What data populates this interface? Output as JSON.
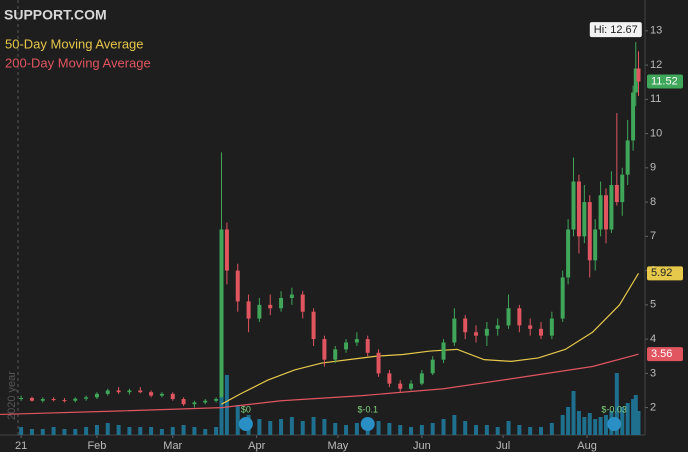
{
  "chart_data": {
    "type": "candlestick",
    "title": "SUPPORT.COM",
    "side_label": "2020 year",
    "high_label": "Hi: 12.67",
    "x": [
      4,
      8,
      12,
      16,
      20,
      24,
      28,
      32,
      36,
      40,
      44,
      48,
      52,
      56,
      60,
      64,
      68,
      72,
      76,
      78,
      80,
      84,
      88,
      92,
      96,
      100,
      104,
      108,
      112,
      116,
      120,
      124,
      128,
      132,
      136,
      140,
      144,
      148,
      152,
      156,
      160,
      164,
      168,
      172,
      176,
      180,
      184,
      188,
      192,
      196,
      200,
      204,
      206,
      208,
      210,
      212,
      214,
      216,
      218,
      220,
      222,
      224,
      226,
      228,
      230,
      231,
      232
    ],
    "open": [
      2.25,
      2.28,
      2.2,
      2.25,
      2.22,
      2.2,
      2.26,
      2.3,
      2.4,
      2.5,
      2.45,
      2.5,
      2.45,
      2.35,
      2.4,
      2.25,
      2.1,
      2.15,
      2.2,
      2.3,
      7.2,
      6.0,
      5.1,
      4.6,
      5.0,
      4.9,
      5.2,
      5.3,
      4.8,
      4.0,
      3.4,
      3.7,
      3.9,
      4.0,
      3.6,
      3.0,
      2.7,
      2.55,
      2.7,
      3.0,
      3.4,
      3.9,
      4.6,
      4.2,
      4.1,
      4.3,
      4.4,
      4.9,
      4.4,
      4.3,
      4.1,
      4.6,
      5.8,
      7.2,
      8.6,
      7.0,
      8.0,
      6.3,
      7.2,
      8.2,
      7.2,
      8.5,
      8.0,
      8.8,
      9.8,
      11.2,
      11.9
    ],
    "high": [
      2.35,
      2.32,
      2.3,
      2.3,
      2.28,
      2.3,
      2.35,
      2.45,
      2.55,
      2.6,
      2.55,
      2.6,
      2.5,
      2.45,
      2.45,
      2.3,
      2.2,
      2.25,
      2.3,
      9.45,
      7.4,
      6.2,
      5.3,
      5.2,
      5.3,
      5.4,
      5.5,
      5.4,
      4.9,
      4.1,
      3.8,
      4.0,
      4.2,
      4.1,
      3.7,
      3.1,
      2.8,
      2.8,
      3.1,
      3.5,
      4.0,
      4.9,
      4.7,
      4.4,
      4.5,
      4.6,
      5.3,
      5.0,
      4.6,
      4.5,
      4.8,
      6.0,
      7.5,
      9.3,
      8.8,
      8.5,
      8.2,
      7.5,
      8.6,
      8.4,
      8.9,
      10.6,
      9.0,
      10.4,
      11.4,
      12.67,
      12.4
    ],
    "low": [
      2.2,
      2.18,
      2.15,
      2.18,
      2.15,
      2.15,
      2.2,
      2.25,
      2.35,
      2.4,
      2.38,
      2.42,
      2.3,
      2.3,
      2.2,
      2.05,
      2.0,
      2.1,
      2.15,
      2.3,
      5.6,
      4.8,
      4.2,
      4.5,
      4.7,
      4.8,
      5.0,
      4.6,
      3.8,
      3.2,
      3.3,
      3.6,
      3.8,
      3.5,
      2.9,
      2.6,
      2.45,
      2.5,
      2.65,
      2.95,
      3.3,
      3.8,
      4.0,
      3.9,
      3.8,
      4.1,
      4.3,
      4.2,
      4.1,
      4.0,
      4.0,
      4.5,
      5.6,
      7.0,
      6.5,
      6.8,
      5.8,
      6.0,
      7.0,
      6.8,
      7.1,
      7.9,
      7.6,
      8.5,
      9.5,
      10.8,
      11.1
    ],
    "close": [
      2.28,
      2.2,
      2.25,
      2.22,
      2.2,
      2.26,
      2.3,
      2.4,
      2.5,
      2.45,
      2.5,
      2.45,
      2.35,
      2.4,
      2.25,
      2.1,
      2.15,
      2.2,
      2.25,
      7.2,
      6.0,
      5.1,
      4.6,
      5.0,
      4.9,
      5.2,
      5.3,
      4.8,
      4.0,
      3.4,
      3.7,
      3.9,
      4.0,
      3.6,
      3.0,
      2.7,
      2.55,
      2.7,
      3.0,
      3.4,
      3.9,
      4.6,
      4.2,
      4.1,
      4.3,
      4.4,
      4.9,
      4.4,
      4.3,
      4.1,
      4.6,
      5.8,
      7.2,
      8.6,
      7.0,
      8.0,
      6.3,
      7.2,
      8.2,
      7.2,
      8.5,
      8.0,
      8.8,
      9.8,
      11.2,
      11.9,
      11.52
    ],
    "volume": [
      4,
      3,
      3,
      4,
      3,
      3,
      4,
      5,
      6,
      5,
      4,
      4,
      4,
      3,
      4,
      5,
      4,
      3,
      4,
      100,
      30,
      15,
      10,
      8,
      7,
      8,
      9,
      7,
      9,
      8,
      6,
      5,
      6,
      5,
      7,
      6,
      5,
      4,
      5,
      6,
      8,
      10,
      7,
      5,
      5,
      4,
      7,
      5,
      4,
      4,
      6,
      10,
      14,
      22,
      12,
      9,
      11,
      8,
      9,
      10,
      12,
      31,
      14,
      16,
      18,
      20,
      12
    ],
    "vlim": [
      0,
      100
    ],
    "xlim": [
      -3.8,
      234.4
    ],
    "xticks": [
      {
        "value": 4,
        "label": "21"
      },
      {
        "value": 32,
        "label": "Feb"
      },
      {
        "value": 60,
        "label": "Mar"
      },
      {
        "value": 91,
        "label": "Apr"
      },
      {
        "value": 121,
        "label": "May"
      },
      {
        "value": 152,
        "label": "Jun"
      },
      {
        "value": 182,
        "label": "Jul"
      },
      {
        "value": 213,
        "label": "Aug"
      }
    ],
    "ylim": [
      1.2,
      13.9
    ],
    "yticks": [
      2,
      3,
      4,
      5,
      6,
      7,
      8,
      9,
      10,
      11,
      12,
      13
    ],
    "up_color": "#3fa65a",
    "down_color": "#e05560",
    "volume_color": "#1f6f8f",
    "series": [
      {
        "name": "50-Day Moving Average",
        "color": "#e6c84b",
        "x": [
          78,
          85,
          95,
          105,
          115,
          125,
          135,
          145,
          155,
          165,
          175,
          185,
          195,
          205,
          215,
          225,
          232
        ],
        "values": [
          2.1,
          2.4,
          2.8,
          3.1,
          3.3,
          3.4,
          3.5,
          3.55,
          3.65,
          3.7,
          3.4,
          3.35,
          3.45,
          3.7,
          4.2,
          5.0,
          5.92
        ]
      },
      {
        "name": "200-Day Moving Average",
        "color": "#e05560",
        "x": [
          -3.8,
          40,
          78,
          100,
          130,
          160,
          190,
          215,
          232
        ],
        "values": [
          1.8,
          1.9,
          2.0,
          2.2,
          2.35,
          2.55,
          2.9,
          3.2,
          3.56
        ]
      }
    ],
    "earnings": [
      {
        "x": 87,
        "label": "$0"
      },
      {
        "x": 132,
        "label": "$-0.1"
      },
      {
        "x": 223,
        "label": "$-0.03"
      }
    ]
  }
}
